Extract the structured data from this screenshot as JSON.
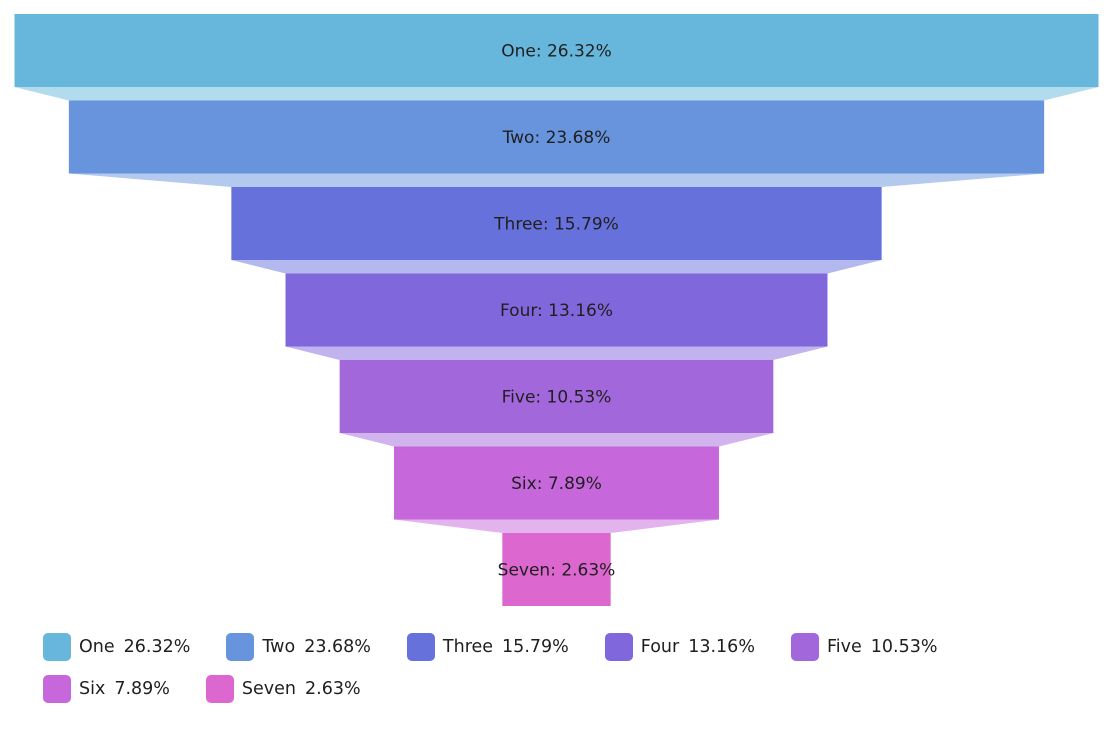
{
  "chart_data": {
    "type": "funnel",
    "title": "",
    "series": [
      {
        "categories": [
          "One",
          "Two",
          "Three",
          "Four",
          "Five",
          "Six",
          "Seven"
        ],
        "values": [
          26.32,
          23.68,
          15.79,
          13.16,
          10.53,
          7.89,
          2.63
        ],
        "labels": [
          "One: 26.32%",
          "Two: 23.68%",
          "Three: 15.79%",
          "Four: 13.16%",
          "Five: 10.53%",
          "Six: 7.89%",
          "Seven: 2.63%"
        ],
        "colors": [
          "#67b7dc",
          "#6794dc",
          "#6771dc",
          "#8067dc",
          "#a367dc",
          "#c767dc",
          "#dc67ce"
        ]
      }
    ],
    "legend": {
      "position": "bottom",
      "items": [
        {
          "name": "One",
          "value": "26.32%"
        },
        {
          "name": "Two",
          "value": "23.68%"
        },
        {
          "name": "Three",
          "value": "15.79%"
        },
        {
          "name": "Four",
          "value": "13.16%"
        },
        {
          "name": "Five",
          "value": "10.53%"
        },
        {
          "name": "Six",
          "value": "7.89%"
        },
        {
          "name": "Seven",
          "value": "2.63%"
        }
      ]
    }
  }
}
